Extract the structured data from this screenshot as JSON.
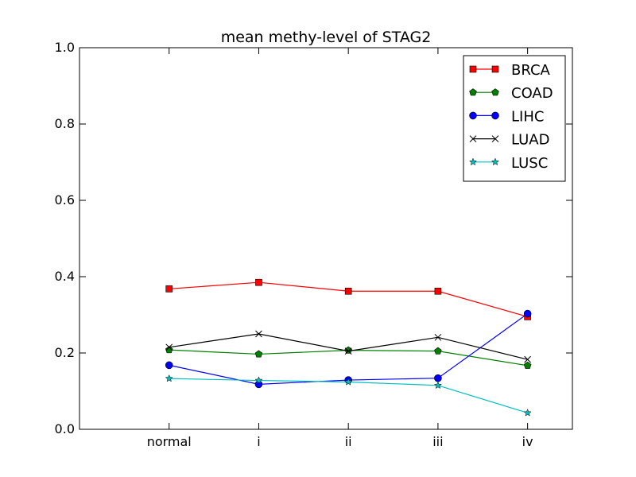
{
  "chart_data": {
    "type": "line",
    "title": "mean methy-level of STAG2",
    "xlabel": "",
    "ylabel": "",
    "categories": [
      "normal",
      "i",
      "ii",
      "iii",
      "iv"
    ],
    "x_range": [
      -1,
      4.5
    ],
    "ylim": [
      0.0,
      1.0
    ],
    "yticks": [
      0.0,
      0.2,
      0.4,
      0.6,
      0.8,
      1.0
    ],
    "ytick_labels": [
      "0.0",
      "0.2",
      "0.4",
      "0.6",
      "0.8",
      "1.0"
    ],
    "grid": false,
    "legend_position": "top-right",
    "series": [
      {
        "name": "BRCA",
        "color": "#ff0000",
        "marker": "square",
        "values": [
          0.368,
          0.385,
          0.362,
          0.362,
          0.295
        ]
      },
      {
        "name": "COAD",
        "color": "#008000",
        "marker": "pentagon",
        "values": [
          0.208,
          0.197,
          0.207,
          0.205,
          0.167
        ]
      },
      {
        "name": "LIHC",
        "color": "#0000ff",
        "marker": "circle",
        "values": [
          0.168,
          0.118,
          0.129,
          0.134,
          0.303
        ]
      },
      {
        "name": "LUAD",
        "color": "#000000",
        "marker": "x",
        "values": [
          0.215,
          0.25,
          0.205,
          0.241,
          0.183
        ]
      },
      {
        "name": "LUSC",
        "color": "#00bfbf",
        "marker": "star",
        "values": [
          0.133,
          0.128,
          0.124,
          0.115,
          0.043
        ]
      }
    ]
  }
}
